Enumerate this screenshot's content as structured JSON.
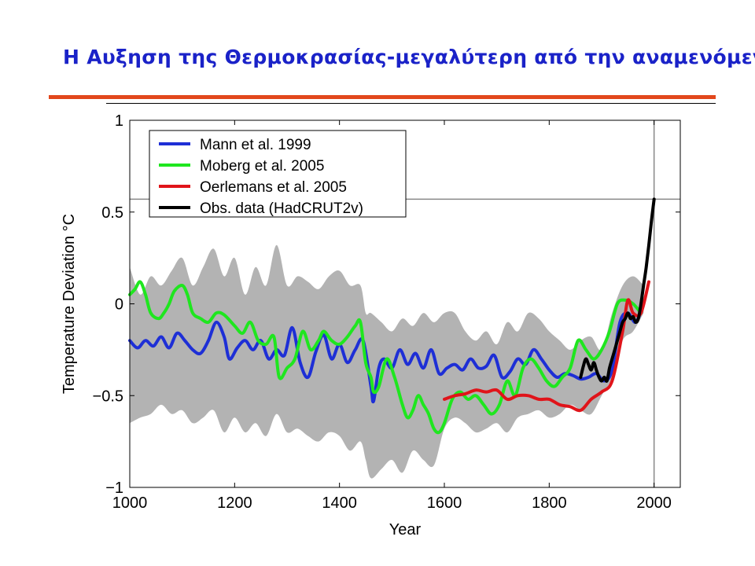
{
  "slide": {
    "title": "Η Αυξηση της Θερμοκρασίας-μεγαλύτερη από την αναμενόμενη"
  },
  "colors": {
    "title": "#1a22c8",
    "accent_rule": "#e2471c",
    "band": "#b3b3b3",
    "mann": "#1e2fd6",
    "moberg": "#1fe61f",
    "oerlemans": "#e0141a",
    "obs": "#000000"
  },
  "chart_data": {
    "type": "line",
    "title": "",
    "xlabel": "Year",
    "ylabel": "Temperature Deviation °C",
    "xlim": [
      1000,
      2050
    ],
    "ylim": [
      -1,
      1
    ],
    "xticks": [
      1000,
      1200,
      1400,
      1600,
      1800,
      2000
    ],
    "yticks": [
      -1,
      -0.5,
      0,
      0.5,
      1
    ],
    "ytick_labels": [
      "−1",
      "−0.5",
      "0",
      "0.5",
      "1"
    ],
    "grid": false,
    "legend_position": "top-left",
    "reference_lines": {
      "y": 0.57,
      "x": 2000
    },
    "uncertainty_band": {
      "x": [
        1000,
        1020,
        1040,
        1060,
        1080,
        1100,
        1120,
        1140,
        1160,
        1180,
        1200,
        1220,
        1240,
        1260,
        1280,
        1300,
        1320,
        1340,
        1360,
        1380,
        1400,
        1420,
        1440,
        1450,
        1460,
        1480,
        1500,
        1520,
        1540,
        1560,
        1580,
        1600,
        1620,
        1640,
        1660,
        1680,
        1700,
        1720,
        1740,
        1760,
        1780,
        1800,
        1820,
        1840,
        1860,
        1880,
        1900,
        1920,
        1940,
        1960,
        1980
      ],
      "upper": [
        0.2,
        0.05,
        0.15,
        0.1,
        0.18,
        0.25,
        0.1,
        0.2,
        0.3,
        0.15,
        0.25,
        0.05,
        0.2,
        0.1,
        0.32,
        0.1,
        0.15,
        0.12,
        0.08,
        0.15,
        0.18,
        0.1,
        0.1,
        -0.05,
        -0.05,
        -0.1,
        -0.15,
        -0.08,
        -0.12,
        -0.05,
        -0.1,
        -0.05,
        -0.05,
        -0.15,
        -0.2,
        -0.15,
        -0.22,
        -0.1,
        -0.15,
        -0.05,
        -0.08,
        -0.15,
        -0.2,
        -0.25,
        -0.2,
        -0.18,
        -0.25,
        -0.05,
        0.1,
        0.15,
        0.1
      ],
      "lower": [
        -0.65,
        -0.62,
        -0.6,
        -0.55,
        -0.6,
        -0.58,
        -0.65,
        -0.62,
        -0.58,
        -0.7,
        -0.62,
        -0.7,
        -0.65,
        -0.72,
        -0.6,
        -0.7,
        -0.68,
        -0.72,
        -0.75,
        -0.7,
        -0.72,
        -0.8,
        -0.75,
        -0.85,
        -0.95,
        -0.9,
        -0.85,
        -0.92,
        -0.8,
        -0.85,
        -0.88,
        -0.68,
        -0.62,
        -0.65,
        -0.7,
        -0.68,
        -0.65,
        -0.7,
        -0.62,
        -0.6,
        -0.58,
        -0.62,
        -0.6,
        -0.55,
        -0.58,
        -0.6,
        -0.5,
        -0.4,
        -0.2,
        -0.15,
        -0.05
      ]
    },
    "series": [
      {
        "name": "Mann et al. 1999",
        "x": [
          1000,
          1015,
          1030,
          1045,
          1060,
          1075,
          1090,
          1105,
          1120,
          1135,
          1150,
          1165,
          1180,
          1190,
          1205,
          1220,
          1235,
          1250,
          1265,
          1280,
          1295,
          1310,
          1325,
          1340,
          1355,
          1370,
          1385,
          1400,
          1415,
          1430,
          1445,
          1460,
          1465,
          1475,
          1485,
          1500,
          1515,
          1530,
          1545,
          1560,
          1575,
          1590,
          1605,
          1620,
          1635,
          1650,
          1665,
          1680,
          1695,
          1710,
          1725,
          1740,
          1755,
          1770,
          1785,
          1800,
          1815,
          1830,
          1845,
          1860,
          1875,
          1890,
          1905,
          1920,
          1935,
          1950,
          1965,
          1980
        ],
        "y": [
          -0.2,
          -0.24,
          -0.2,
          -0.23,
          -0.18,
          -0.24,
          -0.16,
          -0.2,
          -0.25,
          -0.27,
          -0.2,
          -0.1,
          -0.18,
          -0.3,
          -0.24,
          -0.2,
          -0.25,
          -0.2,
          -0.3,
          -0.25,
          -0.28,
          -0.13,
          -0.32,
          -0.4,
          -0.26,
          -0.17,
          -0.3,
          -0.22,
          -0.32,
          -0.25,
          -0.2,
          -0.45,
          -0.53,
          -0.35,
          -0.3,
          -0.35,
          -0.25,
          -0.33,
          -0.27,
          -0.35,
          -0.25,
          -0.38,
          -0.35,
          -0.33,
          -0.36,
          -0.3,
          -0.35,
          -0.34,
          -0.28,
          -0.4,
          -0.37,
          -0.3,
          -0.33,
          -0.25,
          -0.3,
          -0.36,
          -0.4,
          -0.38,
          -0.39,
          -0.41,
          -0.4,
          -0.38,
          -0.42,
          -0.36,
          -0.1,
          -0.05,
          -0.1,
          0.0
        ]
      },
      {
        "name": "Moberg et al. 2005",
        "x": [
          1000,
          1010,
          1020,
          1030,
          1040,
          1055,
          1065,
          1075,
          1085,
          1100,
          1110,
          1120,
          1135,
          1150,
          1165,
          1180,
          1200,
          1215,
          1230,
          1245,
          1260,
          1275,
          1285,
          1300,
          1315,
          1330,
          1345,
          1360,
          1370,
          1385,
          1400,
          1415,
          1430,
          1440,
          1450,
          1460,
          1465,
          1475,
          1490,
          1505,
          1520,
          1530,
          1540,
          1550,
          1560,
          1570,
          1580,
          1590,
          1600,
          1615,
          1630,
          1645,
          1660,
          1675,
          1690,
          1705,
          1720,
          1735,
          1750,
          1765,
          1780,
          1795,
          1810,
          1825,
          1840,
          1855,
          1870,
          1885,
          1900,
          1915,
          1930,
          1945,
          1960,
          1975
        ],
        "y": [
          0.05,
          0.08,
          0.12,
          0.05,
          -0.05,
          -0.08,
          -0.05,
          0.0,
          0.07,
          0.1,
          0.05,
          -0.05,
          -0.08,
          -0.1,
          -0.05,
          -0.06,
          -0.12,
          -0.16,
          -0.1,
          -0.2,
          -0.22,
          -0.18,
          -0.4,
          -0.35,
          -0.3,
          -0.15,
          -0.25,
          -0.2,
          -0.15,
          -0.2,
          -0.22,
          -0.18,
          -0.12,
          -0.1,
          -0.32,
          -0.4,
          -0.48,
          -0.45,
          -0.3,
          -0.4,
          -0.55,
          -0.62,
          -0.58,
          -0.5,
          -0.55,
          -0.6,
          -0.68,
          -0.7,
          -0.65,
          -0.52,
          -0.48,
          -0.52,
          -0.5,
          -0.55,
          -0.6,
          -0.55,
          -0.42,
          -0.5,
          -0.35,
          -0.3,
          -0.35,
          -0.42,
          -0.45,
          -0.4,
          -0.35,
          -0.2,
          -0.25,
          -0.3,
          -0.25,
          -0.15,
          0.0,
          0.02,
          0.0,
          -0.05
        ]
      },
      {
        "name": "Oerlemans et al. 2005",
        "x": [
          1600,
          1620,
          1640,
          1660,
          1680,
          1700,
          1720,
          1740,
          1760,
          1780,
          1800,
          1820,
          1840,
          1860,
          1880,
          1900,
          1920,
          1940,
          1950,
          1960,
          1975,
          1990
        ],
        "y": [
          -0.52,
          -0.5,
          -0.49,
          -0.47,
          -0.48,
          -0.47,
          -0.52,
          -0.5,
          -0.5,
          -0.52,
          -0.52,
          -0.55,
          -0.56,
          -0.58,
          -0.52,
          -0.48,
          -0.42,
          -0.15,
          0.02,
          -0.05,
          -0.05,
          0.12
        ]
      },
      {
        "name": "Obs. data (HadCRUT2v)",
        "x": [
          1860,
          1865,
          1870,
          1875,
          1880,
          1885,
          1890,
          1895,
          1900,
          1905,
          1910,
          1915,
          1920,
          1925,
          1930,
          1935,
          1940,
          1945,
          1950,
          1955,
          1960,
          1965,
          1970,
          1975,
          1980,
          1985,
          1990,
          1995,
          2000
        ],
        "y": [
          -0.4,
          -0.34,
          -0.3,
          -0.33,
          -0.36,
          -0.32,
          -0.36,
          -0.4,
          -0.42,
          -0.4,
          -0.42,
          -0.35,
          -0.3,
          -0.25,
          -0.2,
          -0.15,
          -0.1,
          -0.08,
          -0.05,
          -0.08,
          -0.07,
          -0.1,
          -0.08,
          0.0,
          0.1,
          0.2,
          0.32,
          0.45,
          0.57
        ]
      }
    ]
  }
}
